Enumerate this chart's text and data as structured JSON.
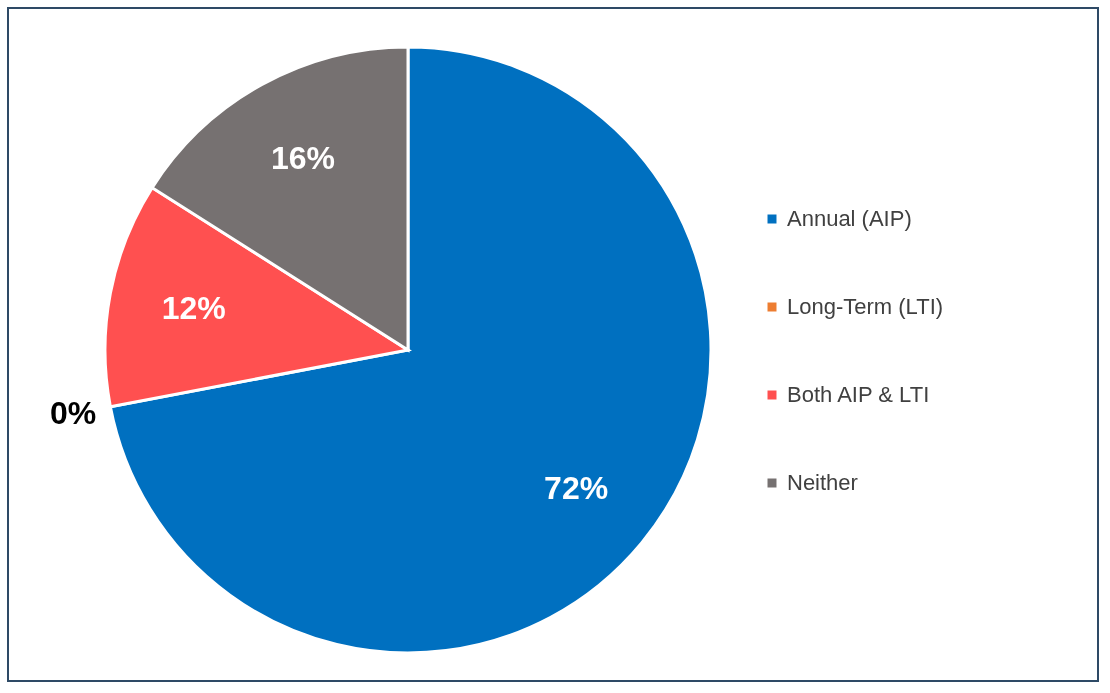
{
  "chart_data": {
    "type": "pie",
    "categories": [
      "Annual (AIP)",
      "Long-Term (LTI)",
      "Both AIP & LTI",
      "Neither"
    ],
    "values": [
      72,
      0,
      12,
      16
    ],
    "colors": [
      "#0070c0",
      "#ed7d31",
      "#ff5050",
      "#767171"
    ],
    "value_labels": [
      "72%",
      "0%",
      "12%",
      "16%"
    ],
    "legend": "right"
  }
}
